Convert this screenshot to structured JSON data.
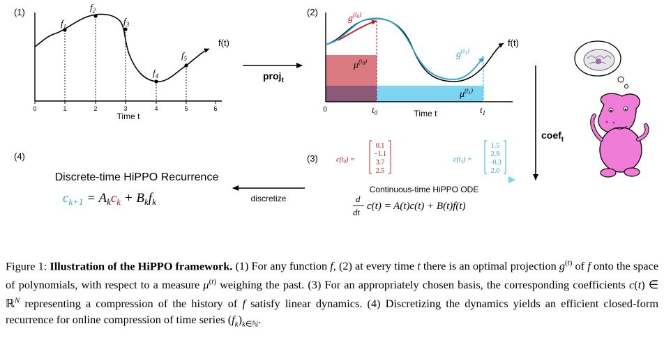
{
  "panels": {
    "p1": {
      "label": "(1)",
      "func_label": "f(t)",
      "xlabel": "Time t",
      "ticks": [
        "0",
        "1",
        "2",
        "3",
        "4",
        "5",
        "6"
      ],
      "sample_labels": [
        "f1",
        "f2",
        "f3",
        "f4",
        "f5"
      ]
    },
    "p2": {
      "label": "(2)",
      "func_label": "f(t)",
      "g0": "g(t0)",
      "g1": "g(t1)",
      "mu0": "μ(t0)",
      "mu1": "μ(t1)",
      "tick0": "0",
      "t0": "t0",
      "t1": "t1",
      "xlabel": "Time t"
    },
    "p3": {
      "label": "(3)",
      "c0_label": "c(t0) =",
      "c0_values": [
        "0.1",
        "−1.1",
        "3.7",
        "2.5"
      ],
      "c1_label": "c(t1) =",
      "c1_values": [
        "1.5",
        "2.9",
        "−0.3",
        "2.0"
      ],
      "gradient_title": "Continuous-time HiPPO ODE",
      "ode": "d/dt c(t) = A(t)c(t) + B(t)f(t)"
    },
    "p4": {
      "label": "(4)",
      "title": "Discrete-time HiPPO Recurrence",
      "eq_lhs": "c",
      "eq_lhs_sub": "k+1",
      "eq_rest": "= A",
      "eq_c": "c",
      "eq_plus": "+ B",
      "eq_f": "f"
    }
  },
  "arrows": {
    "proj": "proj",
    "proj_sub": "t",
    "coef": "coef",
    "coef_sub": "t",
    "discretize": "discretize"
  },
  "colors": {
    "red": "#c0141b",
    "blue": "#2a9fd6",
    "red_fill": "#d9737a",
    "blue_fill": "#6fcff0"
  },
  "caption": {
    "fig_label": "Figure 1:",
    "bold_title": "Illustration of the HiPPO framework.",
    "body": "(1) For any function f, (2) at every time t there is an optimal projection g(t) of f onto the space of polynomials, with respect to a measure μ(t) weighing the past. (3) For an appropriately chosen basis, the corresponding coefficients c(t) ∈ ℝN representing a compression of the history of f satisfy linear dynamics. (4) Discretizing the dynamics yields an efficient closed-form recurrence for online compression of time series (fk)k∈ℕ."
  }
}
